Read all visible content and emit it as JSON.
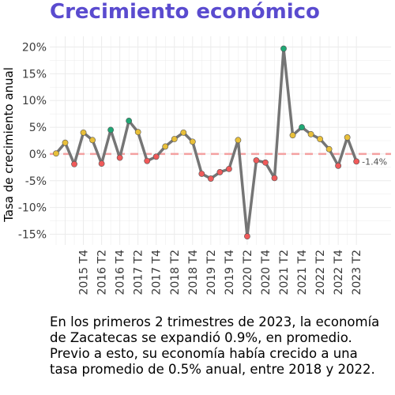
{
  "chart_data": {
    "type": "line",
    "title": "Crecimiento económico",
    "ylabel": "Tasa de crecimiento anual",
    "xlabel": "",
    "ylim": [
      -17,
      22
    ],
    "yticks": [
      -15,
      -10,
      -5,
      0,
      5,
      10,
      15,
      20
    ],
    "ytick_labels": [
      "-15%",
      "-10%",
      "-5%",
      "0%",
      "5%",
      "10%",
      "15%",
      "20%"
    ],
    "x_ticks": [
      "2015 T4",
      "2016 T2",
      "2016 T4",
      "2017 T2",
      "2017 T4",
      "2018 T2",
      "2018 T4",
      "2019 T2",
      "2019 T4",
      "2020 T2",
      "2020 T4",
      "2021 T2",
      "2021 T4",
      "2022 T2",
      "2022 T4",
      "2023 T2"
    ],
    "quarters": [
      "2015 T1",
      "2015 T2",
      "2015 T3",
      "2015 T4",
      "2016 T1",
      "2016 T2",
      "2016 T3",
      "2016 T4",
      "2017 T1",
      "2017 T2",
      "2017 T3",
      "2017 T4",
      "2018 T1",
      "2018 T2",
      "2018 T3",
      "2018 T4",
      "2019 T1",
      "2019 T2",
      "2019 T3",
      "2019 T4",
      "2020 T1",
      "2020 T2",
      "2020 T3",
      "2020 T4",
      "2021 T1",
      "2021 T2",
      "2021 T3",
      "2021 T4",
      "2022 T1",
      "2022 T2",
      "2022 T3",
      "2022 T4",
      "2023 T1",
      "2023 T2"
    ],
    "values": [
      0.1,
      2.1,
      -1.9,
      4.0,
      2.6,
      -1.8,
      4.5,
      -0.7,
      6.2,
      4.1,
      -1.3,
      -0.5,
      1.4,
      2.8,
      4.0,
      2.3,
      -3.7,
      -4.6,
      -3.4,
      -2.8,
      2.6,
      -15.4,
      -1.2,
      -1.6,
      -4.5,
      19.7,
      3.5,
      5.0,
      3.7,
      2.8,
      0.9,
      -2.2,
      3.1,
      -1.4
    ],
    "point_colors": [
      "#e8bf3a",
      "#e8bf3a",
      "#f05a5a",
      "#e8bf3a",
      "#e8bf3a",
      "#f05a5a",
      "#1fa774",
      "#f05a5a",
      "#1fa774",
      "#e8bf3a",
      "#f05a5a",
      "#f05a5a",
      "#e8bf3a",
      "#e8bf3a",
      "#e8bf3a",
      "#e8bf3a",
      "#f05a5a",
      "#f05a5a",
      "#f05a5a",
      "#f05a5a",
      "#e8bf3a",
      "#f05a5a",
      "#f05a5a",
      "#f05a5a",
      "#f05a5a",
      "#1fa774",
      "#e8bf3a",
      "#1fa774",
      "#e8bf3a",
      "#e8bf3a",
      "#e8bf3a",
      "#f05a5a",
      "#e8bf3a",
      "#f05a5a"
    ],
    "annotation": "-1.4%",
    "reference_line": 0,
    "grid": true,
    "colors": {
      "line": "#757575",
      "reference": "#f4a0a0",
      "title": "#5a4bcf",
      "grid": "#ebebeb"
    }
  },
  "caption": "En los primeros 2 trimestres de 2023, la economía de Zacatecas se expandió 0.9%, en promedio. Previo a esto, su economía había crecido a una tasa promedio de 0.5% anual, entre 2018 y 2022."
}
